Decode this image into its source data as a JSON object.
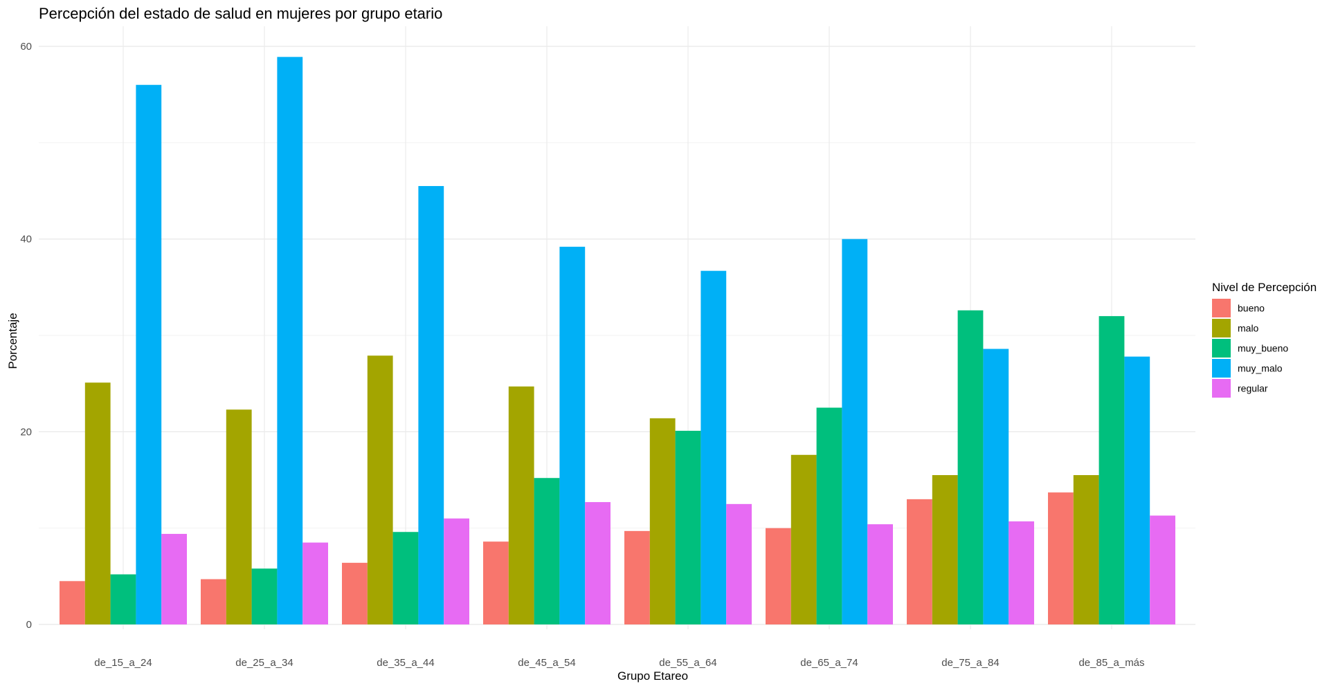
{
  "chart_data": {
    "type": "bar",
    "title": "Percepción del estado de salud en mujeres por grupo etario",
    "xlabel": "Grupo Etareo",
    "ylabel": "Porcentaje",
    "ylim": [
      0,
      62
    ],
    "yticks": [
      0,
      20,
      40,
      60
    ],
    "grid": true,
    "legend_title": "Nivel de Percepción",
    "legend_position": "right",
    "categories": [
      "de_15_a_24",
      "de_25_a_34",
      "de_35_a_44",
      "de_45_a_54",
      "de_55_a_64",
      "de_65_a_74",
      "de_75_a_84",
      "de_85_a_más"
    ],
    "series": [
      {
        "name": "bueno",
        "color": "#F8766D",
        "values": [
          4.5,
          4.7,
          6.4,
          8.6,
          9.7,
          10.0,
          13.0,
          13.7
        ]
      },
      {
        "name": "malo",
        "color": "#A3A500",
        "values": [
          25.1,
          22.3,
          27.9,
          24.7,
          21.4,
          17.6,
          15.5,
          15.5
        ]
      },
      {
        "name": "muy_bueno",
        "color": "#00BF7D",
        "values": [
          5.2,
          5.8,
          9.6,
          15.2,
          20.1,
          22.5,
          32.6,
          32.0
        ]
      },
      {
        "name": "muy_malo",
        "color": "#00B0F6",
        "values": [
          56.0,
          58.9,
          45.5,
          39.2,
          36.7,
          40.0,
          28.6,
          27.8
        ]
      },
      {
        "name": "regular",
        "color": "#E76BF3",
        "values": [
          9.4,
          8.5,
          11.0,
          12.7,
          12.5,
          10.4,
          10.7,
          11.3
        ]
      }
    ]
  }
}
